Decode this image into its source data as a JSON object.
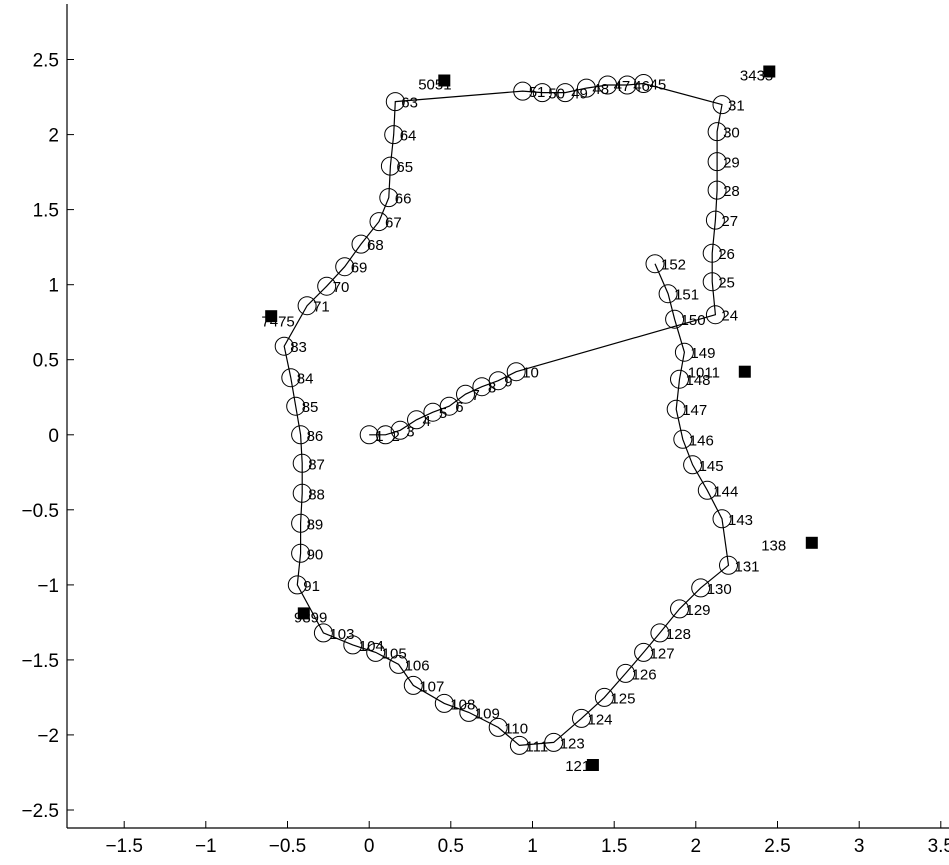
{
  "chart_data": {
    "type": "scatter",
    "title": "",
    "xlabel": "",
    "ylabel": "",
    "xlim": [
      -1.85,
      3.55
    ],
    "ylim": [
      -2.62,
      2.87
    ],
    "xticks": [
      -1.5,
      -1,
      -0.5,
      0,
      0.5,
      1,
      1.5,
      2,
      2.5,
      3,
      3.5
    ],
    "yticks": [
      -2.5,
      -2,
      -1.5,
      -1,
      -0.5,
      0,
      0.5,
      1,
      1.5,
      2,
      2.5
    ],
    "xtick_labels": [
      "−1.5",
      "−1",
      "−0.5",
      "0",
      "0.5",
      "1",
      "1.5",
      "2",
      "2.5",
      "3",
      "3.5"
    ],
    "ytick_labels": [
      "−2.5",
      "−2",
      "−1.5",
      "−1",
      "−0.5",
      "0",
      "0.5",
      "1",
      "1.5",
      "2",
      "2.5"
    ],
    "grid": false,
    "legend": "none",
    "marker": "open circle",
    "line_color": "#000000",
    "poses": [
      {
        "id": "1",
        "x": 0.0,
        "y": 0.0
      },
      {
        "id": "2",
        "x": 0.1,
        "y": 0.0
      },
      {
        "id": "3",
        "x": 0.19,
        "y": 0.03
      },
      {
        "id": "4",
        "x": 0.29,
        "y": 0.1
      },
      {
        "id": "5",
        "x": 0.39,
        "y": 0.15
      },
      {
        "id": "6",
        "x": 0.49,
        "y": 0.19
      },
      {
        "id": "7",
        "x": 0.59,
        "y": 0.27
      },
      {
        "id": "8",
        "x": 0.69,
        "y": 0.32
      },
      {
        "id": "9",
        "x": 0.79,
        "y": 0.36
      },
      {
        "id": "10",
        "x": 0.9,
        "y": 0.42
      },
      {
        "id": "24",
        "x": 2.12,
        "y": 0.8
      },
      {
        "id": "25",
        "x": 2.1,
        "y": 1.02
      },
      {
        "id": "26",
        "x": 2.1,
        "y": 1.21
      },
      {
        "id": "27",
        "x": 2.12,
        "y": 1.43
      },
      {
        "id": "28",
        "x": 2.13,
        "y": 1.63
      },
      {
        "id": "29",
        "x": 2.13,
        "y": 1.82
      },
      {
        "id": "30",
        "x": 2.13,
        "y": 2.02
      },
      {
        "id": "31",
        "x": 2.16,
        "y": 2.2
      },
      {
        "id": "45",
        "x": 1.68,
        "y": 2.34
      },
      {
        "id": "46",
        "x": 1.58,
        "y": 2.33
      },
      {
        "id": "47",
        "x": 1.46,
        "y": 2.33
      },
      {
        "id": "48",
        "x": 1.33,
        "y": 2.31
      },
      {
        "id": "49",
        "x": 1.2,
        "y": 2.28
      },
      {
        "id": "50",
        "x": 1.06,
        "y": 2.28
      },
      {
        "id": "51",
        "x": 0.94,
        "y": 2.29
      },
      {
        "id": "63",
        "x": 0.16,
        "y": 2.22
      },
      {
        "id": "64",
        "x": 0.15,
        "y": 2.0
      },
      {
        "id": "65",
        "x": 0.13,
        "y": 1.79
      },
      {
        "id": "66",
        "x": 0.12,
        "y": 1.58
      },
      {
        "id": "67",
        "x": 0.06,
        "y": 1.42
      },
      {
        "id": "68",
        "x": -0.05,
        "y": 1.27
      },
      {
        "id": "69",
        "x": -0.15,
        "y": 1.12
      },
      {
        "id": "70",
        "x": -0.26,
        "y": 0.99
      },
      {
        "id": "71",
        "x": -0.38,
        "y": 0.86
      },
      {
        "id": "83",
        "x": -0.52,
        "y": 0.59
      },
      {
        "id": "84",
        "x": -0.48,
        "y": 0.38
      },
      {
        "id": "85",
        "x": -0.45,
        "y": 0.19
      },
      {
        "id": "86",
        "x": -0.42,
        "y": 0.0
      },
      {
        "id": "87",
        "x": -0.41,
        "y": -0.19
      },
      {
        "id": "88",
        "x": -0.41,
        "y": -0.39
      },
      {
        "id": "89",
        "x": -0.42,
        "y": -0.59
      },
      {
        "id": "90",
        "x": -0.42,
        "y": -0.79
      },
      {
        "id": "91",
        "x": -0.44,
        "y": -1.0
      },
      {
        "id": "103",
        "x": -0.28,
        "y": -1.32
      },
      {
        "id": "104",
        "x": -0.1,
        "y": -1.4
      },
      {
        "id": "105",
        "x": 0.04,
        "y": -1.45
      },
      {
        "id": "106",
        "x": 0.18,
        "y": -1.53
      },
      {
        "id": "107",
        "x": 0.27,
        "y": -1.67
      },
      {
        "id": "108",
        "x": 0.46,
        "y": -1.79
      },
      {
        "id": "109",
        "x": 0.61,
        "y": -1.85
      },
      {
        "id": "110",
        "x": 0.79,
        "y": -1.95
      },
      {
        "id": "111",
        "x": 0.92,
        "y": -2.07
      },
      {
        "id": "123",
        "x": 1.13,
        "y": -2.05
      },
      {
        "id": "124",
        "x": 1.3,
        "y": -1.89
      },
      {
        "id": "125",
        "x": 1.44,
        "y": -1.75
      },
      {
        "id": "126",
        "x": 1.57,
        "y": -1.59
      },
      {
        "id": "127",
        "x": 1.68,
        "y": -1.45
      },
      {
        "id": "128",
        "x": 1.78,
        "y": -1.32
      },
      {
        "id": "129",
        "x": 1.9,
        "y": -1.16
      },
      {
        "id": "130",
        "x": 2.03,
        "y": -1.02
      },
      {
        "id": "131",
        "x": 2.2,
        "y": -0.87
      },
      {
        "id": "143",
        "x": 2.16,
        "y": -0.56
      },
      {
        "id": "144",
        "x": 2.07,
        "y": -0.37
      },
      {
        "id": "145",
        "x": 1.98,
        "y": -0.2
      },
      {
        "id": "146",
        "x": 1.92,
        "y": -0.03
      },
      {
        "id": "147",
        "x": 1.88,
        "y": 0.17
      },
      {
        "id": "148",
        "x": 1.9,
        "y": 0.37
      },
      {
        "id": "149",
        "x": 1.93,
        "y": 0.55
      },
      {
        "id": "150",
        "x": 1.87,
        "y": 0.77
      },
      {
        "id": "151",
        "x": 1.83,
        "y": 0.94
      },
      {
        "id": "152",
        "x": 1.75,
        "y": 1.14
      }
    ],
    "landmarks": [
      {
        "x": 2.3,
        "y": 0.42
      },
      {
        "x": 2.45,
        "y": 2.42
      },
      {
        "x": 0.46,
        "y": 2.36
      },
      {
        "x": -0.6,
        "y": 0.79
      },
      {
        "x": -0.4,
        "y": -1.19
      },
      {
        "x": 1.37,
        "y": -2.2
      },
      {
        "x": 2.71,
        "y": -0.72
      }
    ],
    "turn_labels": [
      {
        "text": "1011",
        "x": 1.95,
        "y": 0.42
      },
      {
        "text": "3435",
        "x": 2.27,
        "y": 2.4
      },
      {
        "text": "5051",
        "x": 0.3,
        "y": 2.34
      },
      {
        "text": "7475",
        "x": -0.66,
        "y": 0.76
      },
      {
        "text": "9899",
        "x": -0.46,
        "y": -1.21
      },
      {
        "text": "121",
        "x": 1.2,
        "y": -2.2
      },
      {
        "text": "138",
        "x": 2.4,
        "y": -0.73
      }
    ]
  }
}
